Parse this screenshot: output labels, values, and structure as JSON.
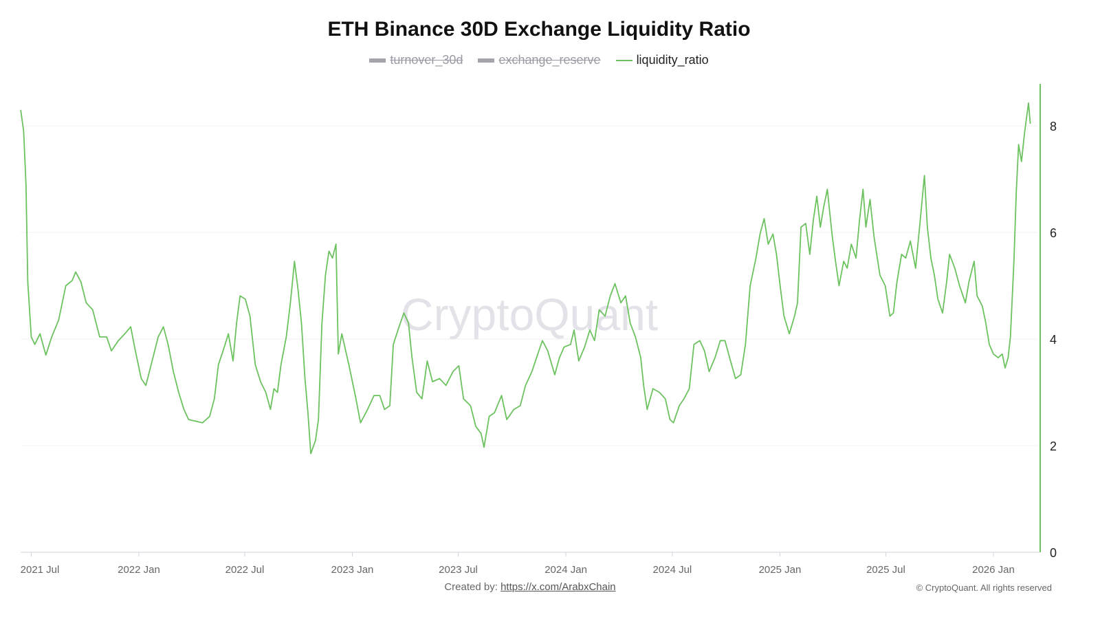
{
  "chart_data": {
    "type": "line",
    "title": "ETH Binance 30D Exchange Liquidity Ratio",
    "legend": [
      {
        "name": "turnover_30d",
        "hidden": true
      },
      {
        "name": "exchange_reserve",
        "hidden": true
      },
      {
        "name": "liquidity_ratio",
        "hidden": false
      }
    ],
    "legend_placement": "top-center",
    "y_axis": {
      "position": "right",
      "ylim": [
        0,
        8.8
      ],
      "ticks": [
        0,
        2,
        4,
        6,
        8
      ],
      "tick_labels": [
        "0",
        "2",
        "4",
        "6",
        "8"
      ]
    },
    "x_axis": {
      "ticks": [
        "2021-07-01",
        "2022-01-01",
        "2022-07-01",
        "2023-01-01",
        "2023-07-01",
        "2024-01-01",
        "2024-07-01",
        "2025-01-01",
        "2025-07-01",
        "2026-01-01"
      ],
      "tick_labels": [
        "2021 Jul",
        "2022 Jan",
        "2022 Jul",
        "2023 Jan",
        "2023 Jul",
        "2024 Jan",
        "2024 Jul",
        "2025 Jan",
        "2025 Jul",
        "2026 Jan"
      ]
    },
    "grid": true,
    "series": [
      {
        "name": "liquidity_ratio",
        "color": "#6cc25f",
        "points": [
          [
            "2021-06-13",
            8.3
          ],
          [
            "2021-06-18",
            7.9
          ],
          [
            "2021-06-22",
            6.9
          ],
          [
            "2021-06-25",
            5.07
          ],
          [
            "2021-07-01",
            4.04
          ],
          [
            "2021-07-07",
            3.9
          ],
          [
            "2021-07-16",
            4.1
          ],
          [
            "2021-07-26",
            3.7
          ],
          [
            "2021-08-05",
            4.04
          ],
          [
            "2021-08-17",
            4.36
          ],
          [
            "2021-08-29",
            5.0
          ],
          [
            "2021-09-09",
            5.1
          ],
          [
            "2021-09-15",
            5.26
          ],
          [
            "2021-09-24",
            5.07
          ],
          [
            "2021-10-03",
            4.68
          ],
          [
            "2021-10-14",
            4.55
          ],
          [
            "2021-10-26",
            4.04
          ],
          [
            "2021-11-07",
            4.04
          ],
          [
            "2021-11-15",
            3.78
          ],
          [
            "2021-11-27",
            3.97
          ],
          [
            "2021-12-08",
            4.1
          ],
          [
            "2021-12-18",
            4.23
          ],
          [
            "2021-12-26",
            3.78
          ],
          [
            "2022-01-05",
            3.26
          ],
          [
            "2022-01-13",
            3.13
          ],
          [
            "2022-01-22",
            3.52
          ],
          [
            "2022-02-03",
            4.04
          ],
          [
            "2022-02-12",
            4.23
          ],
          [
            "2022-02-20",
            3.9
          ],
          [
            "2022-03-01",
            3.39
          ],
          [
            "2022-03-10",
            3.0
          ],
          [
            "2022-03-19",
            2.68
          ],
          [
            "2022-03-27",
            2.49
          ],
          [
            "2022-04-08",
            2.46
          ],
          [
            "2022-04-20",
            2.43
          ],
          [
            "2022-05-02",
            2.55
          ],
          [
            "2022-05-10",
            2.88
          ],
          [
            "2022-05-17",
            3.52
          ],
          [
            "2022-05-25",
            3.78
          ],
          [
            "2022-06-03",
            4.1
          ],
          [
            "2022-06-11",
            3.59
          ],
          [
            "2022-06-17",
            4.3
          ],
          [
            "2022-06-23",
            4.81
          ],
          [
            "2022-07-02",
            4.75
          ],
          [
            "2022-07-10",
            4.43
          ],
          [
            "2022-07-19",
            3.52
          ],
          [
            "2022-07-28",
            3.2
          ],
          [
            "2022-08-06",
            3.0
          ],
          [
            "2022-08-14",
            2.68
          ],
          [
            "2022-08-20",
            3.07
          ],
          [
            "2022-08-26",
            3.0
          ],
          [
            "2022-09-01",
            3.52
          ],
          [
            "2022-09-10",
            4.04
          ],
          [
            "2022-09-17",
            4.68
          ],
          [
            "2022-09-24",
            5.46
          ],
          [
            "2022-09-30",
            4.94
          ],
          [
            "2022-10-06",
            4.3
          ],
          [
            "2022-10-12",
            3.26
          ],
          [
            "2022-10-17",
            2.62
          ],
          [
            "2022-10-22",
            1.85
          ],
          [
            "2022-10-30",
            2.1
          ],
          [
            "2022-11-04",
            2.49
          ],
          [
            "2022-11-10",
            4.3
          ],
          [
            "2022-11-16",
            5.2
          ],
          [
            "2022-11-22",
            5.65
          ],
          [
            "2022-11-28",
            5.52
          ],
          [
            "2022-12-04",
            5.78
          ],
          [
            "2022-12-08",
            3.72
          ],
          [
            "2022-12-14",
            4.1
          ],
          [
            "2022-12-26",
            3.52
          ],
          [
            "2023-01-06",
            2.94
          ],
          [
            "2023-01-15",
            2.43
          ],
          [
            "2023-01-27",
            2.68
          ],
          [
            "2023-02-07",
            2.94
          ],
          [
            "2023-02-17",
            2.94
          ],
          [
            "2023-02-25",
            2.68
          ],
          [
            "2023-03-06",
            2.75
          ],
          [
            "2023-03-12",
            3.9
          ],
          [
            "2023-03-20",
            4.17
          ],
          [
            "2023-03-30",
            4.49
          ],
          [
            "2023-04-07",
            4.3
          ],
          [
            "2023-04-13",
            3.65
          ],
          [
            "2023-04-21",
            3.0
          ],
          [
            "2023-04-30",
            2.88
          ],
          [
            "2023-05-09",
            3.59
          ],
          [
            "2023-05-18",
            3.2
          ],
          [
            "2023-05-30",
            3.26
          ],
          [
            "2023-06-10",
            3.13
          ],
          [
            "2023-06-22",
            3.39
          ],
          [
            "2023-07-02",
            3.5
          ],
          [
            "2023-07-10",
            2.88
          ],
          [
            "2023-07-22",
            2.75
          ],
          [
            "2023-07-31",
            2.36
          ],
          [
            "2023-08-09",
            2.23
          ],
          [
            "2023-08-14",
            1.97
          ],
          [
            "2023-08-23",
            2.55
          ],
          [
            "2023-09-01",
            2.62
          ],
          [
            "2023-09-13",
            2.94
          ],
          [
            "2023-09-22",
            2.49
          ],
          [
            "2023-10-04",
            2.68
          ],
          [
            "2023-10-15",
            2.75
          ],
          [
            "2023-10-24",
            3.13
          ],
          [
            "2023-11-04",
            3.39
          ],
          [
            "2023-11-14",
            3.72
          ],
          [
            "2023-11-22",
            3.97
          ],
          [
            "2023-12-01",
            3.78
          ],
          [
            "2023-12-13",
            3.33
          ],
          [
            "2023-12-21",
            3.65
          ],
          [
            "2023-12-29",
            3.85
          ],
          [
            "2024-01-09",
            3.9
          ],
          [
            "2024-01-15",
            4.17
          ],
          [
            "2024-01-23",
            3.59
          ],
          [
            "2024-02-02",
            3.85
          ],
          [
            "2024-02-11",
            4.17
          ],
          [
            "2024-02-19",
            3.97
          ],
          [
            "2024-02-27",
            4.55
          ],
          [
            "2024-03-08",
            4.43
          ],
          [
            "2024-03-17",
            4.81
          ],
          [
            "2024-03-25",
            5.04
          ],
          [
            "2024-04-04",
            4.68
          ],
          [
            "2024-04-12",
            4.81
          ],
          [
            "2024-04-20",
            4.3
          ],
          [
            "2024-04-29",
            4.04
          ],
          [
            "2024-05-08",
            3.65
          ],
          [
            "2024-05-13",
            3.13
          ],
          [
            "2024-05-19",
            2.68
          ],
          [
            "2024-05-29",
            3.07
          ],
          [
            "2024-06-09",
            3.0
          ],
          [
            "2024-06-19",
            2.88
          ],
          [
            "2024-06-27",
            2.49
          ],
          [
            "2024-07-03",
            2.43
          ],
          [
            "2024-07-13",
            2.75
          ],
          [
            "2024-07-21",
            2.88
          ],
          [
            "2024-07-30",
            3.07
          ],
          [
            "2024-08-07",
            3.9
          ],
          [
            "2024-08-17",
            3.97
          ],
          [
            "2024-08-25",
            3.78
          ],
          [
            "2024-09-02",
            3.39
          ],
          [
            "2024-09-12",
            3.65
          ],
          [
            "2024-09-21",
            3.97
          ],
          [
            "2024-09-29",
            3.97
          ],
          [
            "2024-10-07",
            3.65
          ],
          [
            "2024-10-17",
            3.26
          ],
          [
            "2024-10-26",
            3.33
          ],
          [
            "2024-11-03",
            3.9
          ],
          [
            "2024-11-11",
            5.0
          ],
          [
            "2024-11-21",
            5.52
          ],
          [
            "2024-11-28",
            5.97
          ],
          [
            "2024-12-05",
            6.26
          ],
          [
            "2024-12-12",
            5.78
          ],
          [
            "2024-12-20",
            5.97
          ],
          [
            "2024-12-26",
            5.59
          ],
          [
            "2025-01-02",
            4.94
          ],
          [
            "2025-01-08",
            4.43
          ],
          [
            "2025-01-17",
            4.1
          ],
          [
            "2025-01-26",
            4.43
          ],
          [
            "2025-01-31",
            4.68
          ],
          [
            "2025-02-06",
            6.1
          ],
          [
            "2025-02-14",
            6.17
          ],
          [
            "2025-02-21",
            5.59
          ],
          [
            "2025-02-27",
            6.23
          ],
          [
            "2025-03-05",
            6.68
          ],
          [
            "2025-03-11",
            6.1
          ],
          [
            "2025-03-17",
            6.49
          ],
          [
            "2025-03-23",
            6.81
          ],
          [
            "2025-03-31",
            5.97
          ],
          [
            "2025-04-06",
            5.46
          ],
          [
            "2025-04-12",
            5.0
          ],
          [
            "2025-04-20",
            5.46
          ],
          [
            "2025-04-26",
            5.33
          ],
          [
            "2025-05-03",
            5.78
          ],
          [
            "2025-05-11",
            5.52
          ],
          [
            "2025-05-17",
            6.23
          ],
          [
            "2025-05-23",
            6.81
          ],
          [
            "2025-05-28",
            6.1
          ],
          [
            "2025-06-04",
            6.62
          ],
          [
            "2025-06-11",
            5.91
          ],
          [
            "2025-06-21",
            5.2
          ],
          [
            "2025-06-30",
            5.0
          ],
          [
            "2025-07-08",
            4.43
          ],
          [
            "2025-07-14",
            4.49
          ],
          [
            "2025-07-20",
            5.07
          ],
          [
            "2025-07-28",
            5.59
          ],
          [
            "2025-08-04",
            5.52
          ],
          [
            "2025-08-12",
            5.84
          ],
          [
            "2025-08-21",
            5.33
          ],
          [
            "2025-08-30",
            6.36
          ],
          [
            "2025-09-05",
            7.07
          ],
          [
            "2025-09-10",
            6.1
          ],
          [
            "2025-09-16",
            5.52
          ],
          [
            "2025-09-22",
            5.2
          ],
          [
            "2025-09-28",
            4.75
          ],
          [
            "2025-10-06",
            4.49
          ],
          [
            "2025-10-13",
            5.07
          ],
          [
            "2025-10-18",
            5.59
          ],
          [
            "2025-10-27",
            5.33
          ],
          [
            "2025-11-04",
            5.0
          ],
          [
            "2025-11-14",
            4.68
          ],
          [
            "2025-11-20",
            5.07
          ],
          [
            "2025-11-29",
            5.46
          ],
          [
            "2025-12-04",
            4.81
          ],
          [
            "2025-12-13",
            4.62
          ],
          [
            "2025-12-19",
            4.3
          ],
          [
            "2025-12-25",
            3.9
          ],
          [
            "2026-01-01",
            3.72
          ],
          [
            "2026-01-09",
            3.65
          ],
          [
            "2026-01-16",
            3.72
          ],
          [
            "2026-01-21",
            3.46
          ],
          [
            "2026-01-26",
            3.65
          ],
          [
            "2026-01-30",
            4.04
          ],
          [
            "2026-02-05",
            5.46
          ],
          [
            "2026-02-09",
            6.75
          ],
          [
            "2026-02-13",
            7.65
          ],
          [
            "2026-02-18",
            7.33
          ],
          [
            "2026-02-23",
            7.85
          ],
          [
            "2026-02-26",
            8.1
          ],
          [
            "2026-03-02",
            8.43
          ],
          [
            "2026-03-05",
            8.04
          ]
        ]
      }
    ]
  },
  "watermark": "CryptoQuant",
  "footer": {
    "created_by_label": "Created by:",
    "created_by_link": "https://x.com/ArabxChain",
    "copyright": "© CryptoQuant. All rights reserved"
  }
}
